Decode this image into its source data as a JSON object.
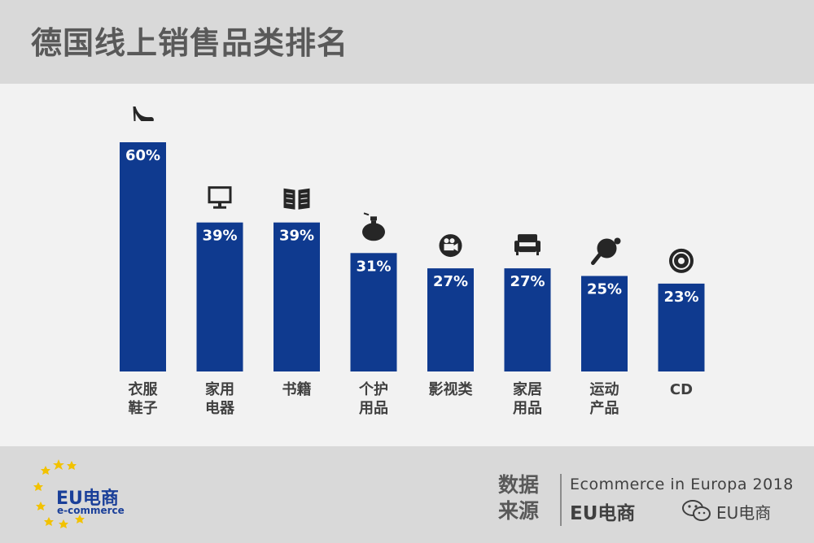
{
  "title": "德国线上销售品类排名",
  "chart_data": {
    "type": "bar",
    "ylim": [
      0,
      60
    ],
    "bar_color": "#0f3a8f",
    "categories": [
      {
        "label_lines": [
          "衣服",
          "鞋子"
        ],
        "value": 60,
        "value_label": "60%",
        "icon": "high-heel-shoe-icon"
      },
      {
        "label_lines": [
          "家用",
          "电器"
        ],
        "value": 39,
        "value_label": "39%",
        "icon": "monitor-icon"
      },
      {
        "label_lines": [
          "书籍"
        ],
        "value": 39,
        "value_label": "39%",
        "icon": "book-icon"
      },
      {
        "label_lines": [
          "个护",
          "用品"
        ],
        "value": 31,
        "value_label": "31%",
        "icon": "perfume-bottle-icon"
      },
      {
        "label_lines": [
          "影视类"
        ],
        "value": 27,
        "value_label": "27%",
        "icon": "film-camera-icon"
      },
      {
        "label_lines": [
          "家居",
          "用品"
        ],
        "value": 27,
        "value_label": "27%",
        "icon": "armchair-icon"
      },
      {
        "label_lines": [
          "运动",
          "产品"
        ],
        "value": 25,
        "value_label": "25%",
        "icon": "ping-pong-paddle-icon"
      },
      {
        "label_lines": [
          "CD"
        ],
        "value": 23,
        "value_label": "23%",
        "icon": "cd-disc-icon"
      }
    ]
  },
  "footer": {
    "logo_text": "EU电商",
    "logo_sub": "e-commerce",
    "source_label_line1": "数据",
    "source_label_line2": "来源",
    "source_line1": "Ecommerce in Europa 2018",
    "source_line2": "EU电商",
    "wechat_name": "EU电商"
  }
}
